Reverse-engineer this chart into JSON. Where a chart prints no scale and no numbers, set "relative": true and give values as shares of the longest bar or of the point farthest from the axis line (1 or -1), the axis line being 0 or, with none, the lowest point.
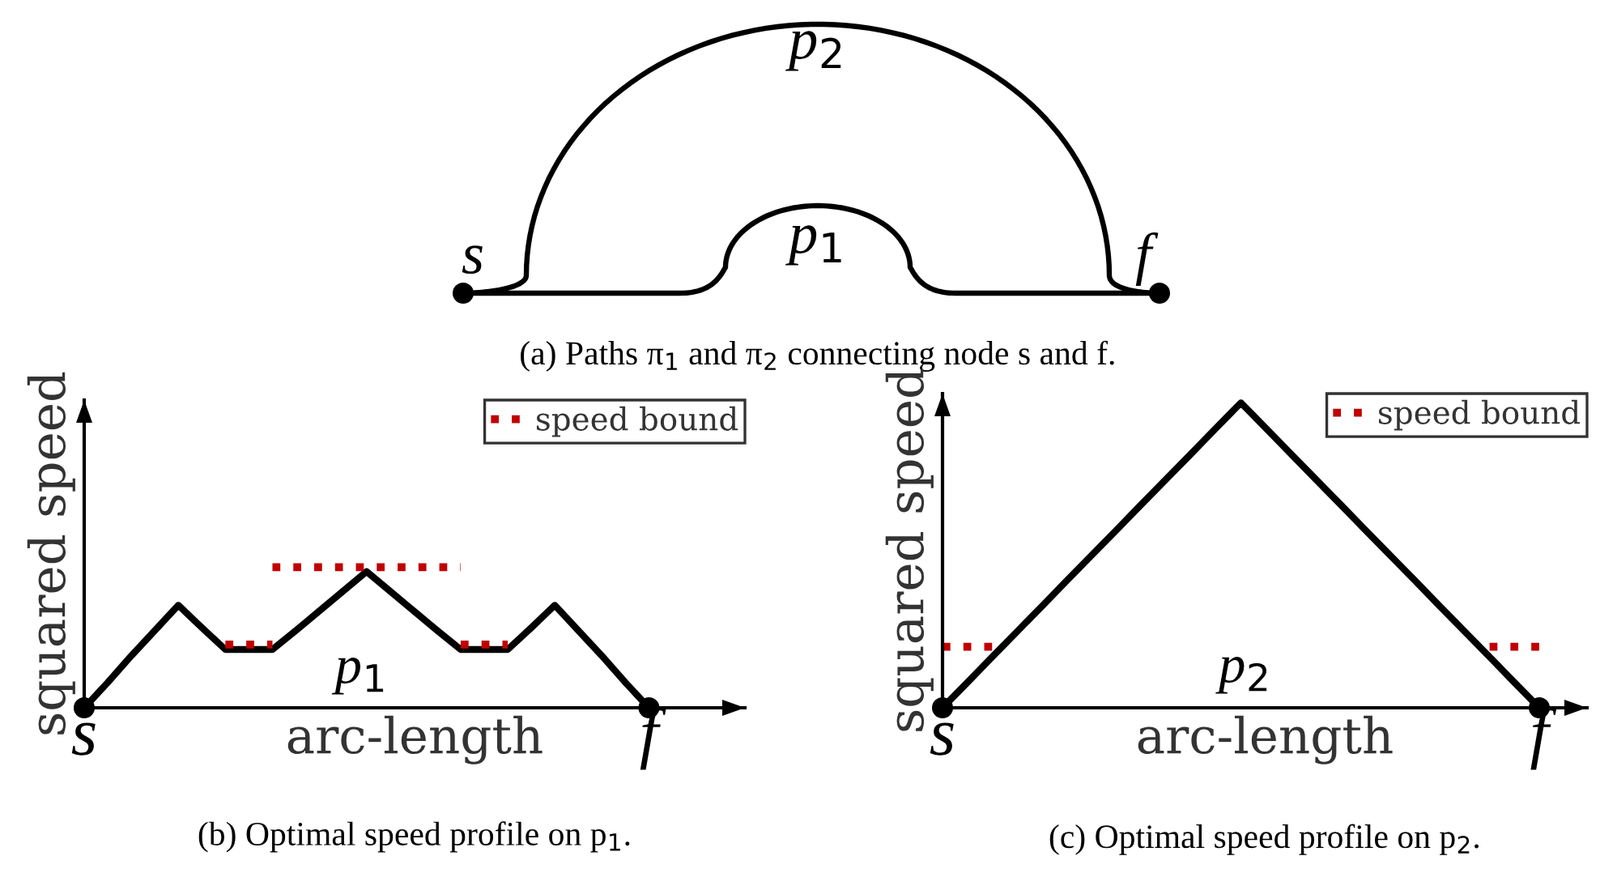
{
  "chart_data": [
    {
      "type": "other",
      "title": "(a) Paths π$_{1}$ and π$_{2}$ connecting node s and f.",
      "annotations": [
        "p$_{2}$",
        "p$_{1}$",
        "s",
        "f"
      ]
    },
    {
      "type": "line",
      "title": "(b) Optimal speed profile on p$_{1}$.",
      "xlabel": "arc-length",
      "ylabel": "squared speed",
      "relative": true,
      "legend": "top right",
      "annotations": [
        "p$_{1}$"
      ],
      "categories": [
        "s",
        null,
        null,
        null,
        null,
        null,
        null,
        null,
        null,
        null,
        null,
        null,
        null,
        null,
        null,
        null,
        null,
        null,
        null,
        null,
        null,
        null,
        null,
        null,
        "f"
      ],
      "series": [
        {
          "color": "#000000",
          "line_style": "solid",
          "values": [
            0,
            0.18,
            0.37,
            0.55,
            0.73,
            0.57,
            0.415,
            0.415,
            0.415,
            0.55,
            0.69,
            0.83,
            0.97,
            0.83,
            0.69,
            0.55,
            0.415,
            0.415,
            0.415,
            0.57,
            0.73,
            0.55,
            0.37,
            0.18,
            0
          ]
        },
        {
          "name": "speed bound",
          "color": "#c00000",
          "line_style": "dotted",
          "values": [
            null,
            null,
            null,
            null,
            null,
            null,
            null,
            null,
            1,
            1,
            1,
            1,
            1,
            1,
            1,
            1,
            1,
            null,
            null,
            null,
            null,
            null,
            null,
            null,
            null
          ]
        },
        {
          "color": "#c00000",
          "line_style": "dotted",
          "values": [
            null,
            null,
            null,
            null,
            null,
            null,
            0.45,
            0.45,
            0.45,
            null,
            null,
            null,
            null,
            null,
            null,
            null,
            0.45,
            0.45,
            0.45,
            null,
            null,
            null,
            null,
            null,
            null
          ]
        },
        {
          "type": "scatter",
          "color": "#000000",
          "marker": "circle",
          "values": [
            0,
            null,
            null,
            null,
            null,
            null,
            null,
            null,
            null,
            null,
            null,
            null,
            null,
            null,
            null,
            null,
            null,
            null,
            null,
            null,
            null,
            null,
            null,
            null,
            0
          ]
        }
      ]
    },
    {
      "type": "line",
      "title": "(c) Optimal speed profile on p$_{2}$.",
      "xlabel": "arc-length",
      "ylabel": "squared speed",
      "relative": true,
      "legend": "top right",
      "annotations": [
        "p$_{2}$"
      ],
      "categories": [
        "s",
        null,
        null,
        null,
        null,
        null,
        null,
        null,
        null,
        null,
        null,
        null,
        null,
        null,
        null,
        null,
        null,
        null,
        null,
        null,
        null,
        null,
        null,
        null,
        "f"
      ],
      "series": [
        {
          "color": "#000000",
          "line_style": "solid",
          "values": [
            0,
            0.083,
            0.167,
            0.25,
            0.333,
            0.417,
            0.5,
            0.583,
            0.667,
            0.75,
            0.833,
            0.917,
            1,
            0.917,
            0.833,
            0.75,
            0.667,
            0.583,
            0.5,
            0.417,
            0.333,
            0.25,
            0.167,
            0.083,
            0
          ]
        },
        {
          "name": "speed bound",
          "color": "#c00000",
          "line_style": "dotted",
          "values": [
            0.2,
            0.2,
            0.2,
            null,
            null,
            null,
            null,
            null,
            null,
            null,
            null,
            null,
            null,
            null,
            null,
            null,
            null,
            null,
            null,
            null,
            null,
            null,
            0.2,
            0.2,
            0.2
          ]
        },
        {
          "type": "scatter",
          "color": "#000000",
          "marker": "circle",
          "values": [
            0,
            null,
            null,
            null,
            null,
            null,
            null,
            null,
            null,
            null,
            null,
            null,
            null,
            null,
            null,
            null,
            null,
            null,
            null,
            null,
            null,
            null,
            null,
            null,
            0
          ]
        }
      ]
    }
  ]
}
